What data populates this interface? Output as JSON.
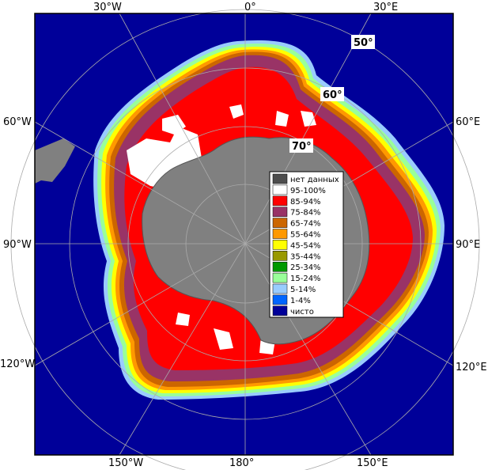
{
  "longitude_labels": {
    "top": [
      "30°W",
      "0°",
      "30°E"
    ],
    "bottom": [
      "150°W",
      "180°",
      "150°E"
    ],
    "left": [
      "60°W",
      "90°W",
      "120°W"
    ],
    "right": [
      "60°E",
      "90°E",
      "120°E"
    ]
  },
  "latitude_labels": [
    "50°",
    "60°",
    "70°"
  ],
  "legend": [
    {
      "label": "нет данных",
      "color": "#4d4d4d"
    },
    {
      "label": "95-100%",
      "color": "#ffffff"
    },
    {
      "label": "85-94%",
      "color": "#ff0000"
    },
    {
      "label": "75-84%",
      "color": "#993366"
    },
    {
      "label": "65-74%",
      "color": "#cc6600"
    },
    {
      "label": "55-64%",
      "color": "#ff9900"
    },
    {
      "label": "45-54%",
      "color": "#ffff00"
    },
    {
      "label": "35-44%",
      "color": "#999900"
    },
    {
      "label": "25-34%",
      "color": "#009900"
    },
    {
      "label": "15-24%",
      "color": "#99ff99"
    },
    {
      "label": "5-14%",
      "color": "#99ccff"
    },
    {
      "label": "1-4%",
      "color": "#0066ff"
    },
    {
      "label": "чисто",
      "color": "#000099"
    }
  ],
  "colors": {
    "ocean": "#000099",
    "land": "#808080",
    "frame": "#000000",
    "grid": "#aaaaaa"
  }
}
